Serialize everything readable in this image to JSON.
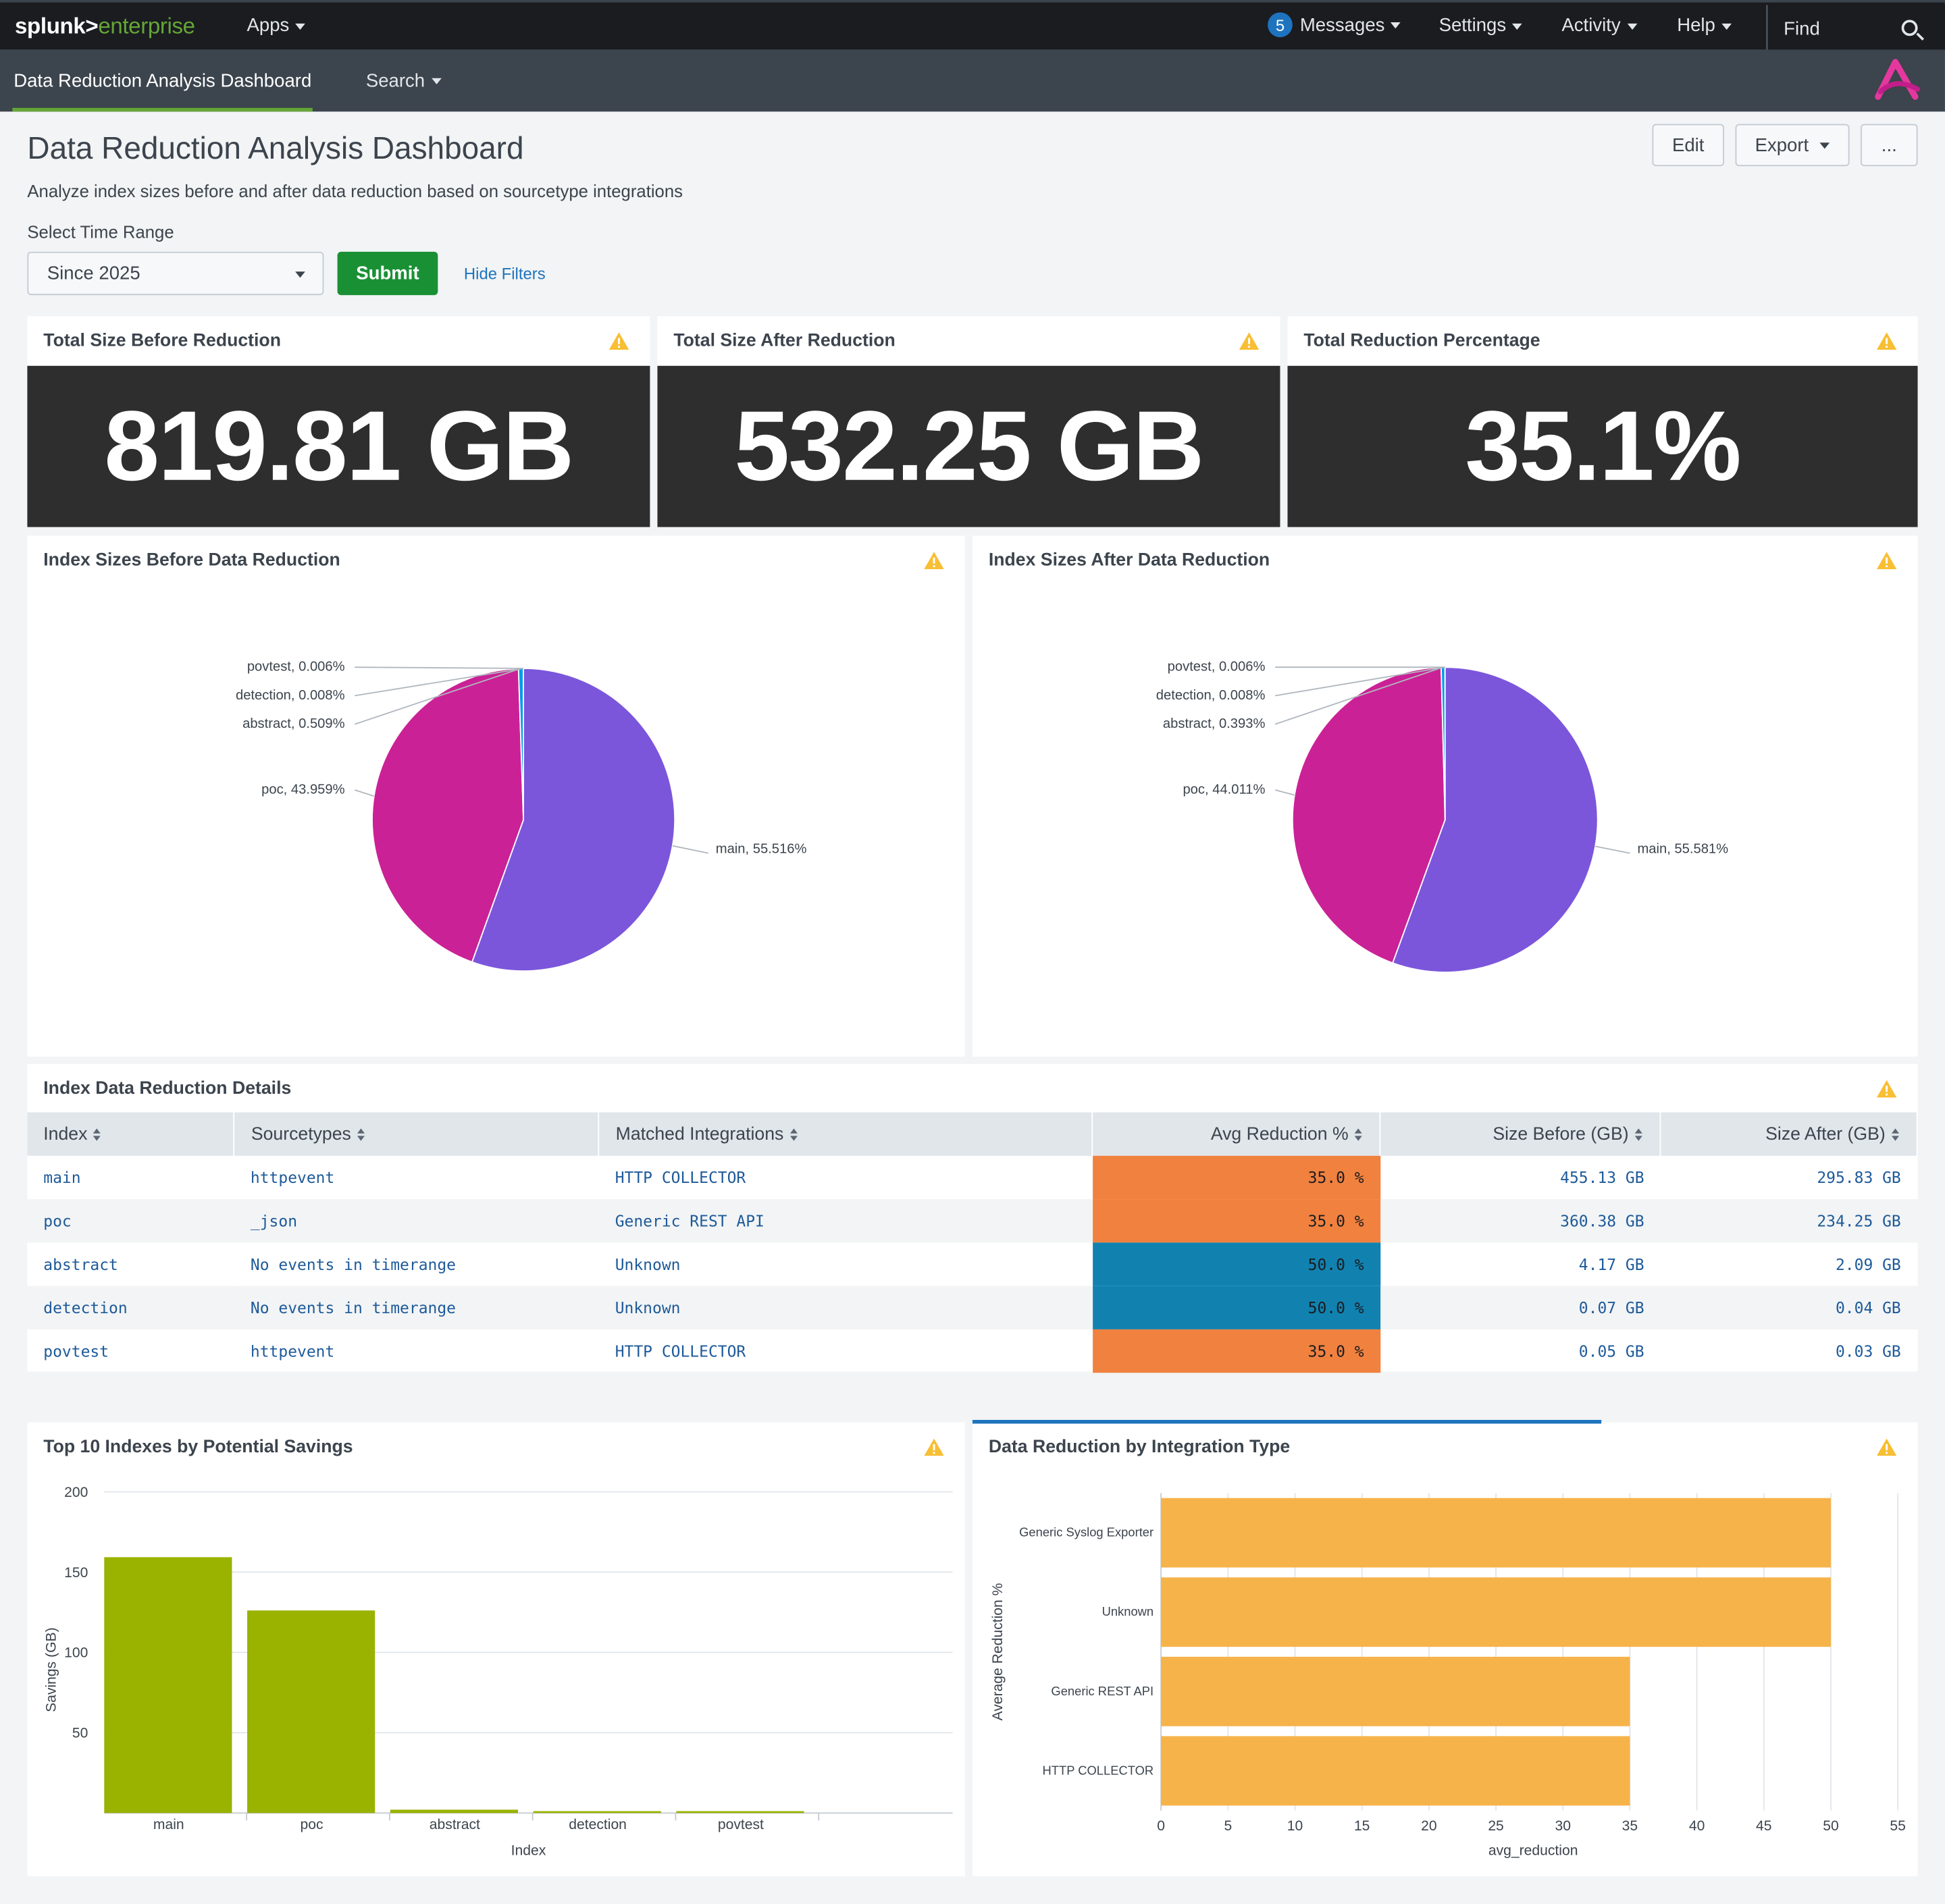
{
  "topbar": {
    "logo_brand": "splunk>",
    "logo_product": "enterprise",
    "apps_label": "Apps",
    "messages_count": "5",
    "messages_label": "Messages",
    "settings_label": "Settings",
    "activity_label": "Activity",
    "help_label": "Help",
    "find_label": "Find"
  },
  "appbar": {
    "active_tab": "Data Reduction Analysis Dashboard",
    "search_tab": "Search"
  },
  "header": {
    "title": "Data Reduction Analysis Dashboard",
    "description": "Analyze index sizes before and after data reduction based on sourcetype integrations",
    "edit_label": "Edit",
    "export_label": "Export",
    "more_label": "..."
  },
  "filters": {
    "time_range_label": "Select Time Range",
    "time_range_value": "Since 2025",
    "submit_label": "Submit",
    "hide_filters_label": "Hide Filters"
  },
  "singles": [
    {
      "title": "Total Size Before Reduction",
      "value": "819.81 GB"
    },
    {
      "title": "Total Size After Reduction",
      "value": "532.25 GB"
    },
    {
      "title": "Total Reduction Percentage",
      "value": "35.1%"
    }
  ],
  "colors": {
    "main_slice": "#7b56db",
    "poc_slice": "#cb2196",
    "abstract_slice": "#009ceb",
    "detection_slice": "#00cdaf",
    "povtest_slice": "#dd9900",
    "heat_orange": "#f1813f",
    "heat_blue": "#1182b0",
    "savings_bar": "#9ab200",
    "integration_bar": "#f6b34a",
    "warning": "#f8be34"
  },
  "pies": [
    {
      "title": "Index Sizes Before Data Reduction",
      "slices": [
        {
          "name": "main",
          "pct": 55.516,
          "label": "main, 55.516%"
        },
        {
          "name": "poc",
          "pct": 43.959,
          "label": "poc, 43.959%"
        },
        {
          "name": "abstract",
          "pct": 0.509,
          "label": "abstract, 0.509%"
        },
        {
          "name": "detection",
          "pct": 0.008,
          "label": "detection, 0.008%"
        },
        {
          "name": "povtest",
          "pct": 0.006,
          "label": "povtest, 0.006%"
        }
      ]
    },
    {
      "title": "Index Sizes After Data Reduction",
      "slices": [
        {
          "name": "main",
          "pct": 55.581,
          "label": "main, 55.581%"
        },
        {
          "name": "poc",
          "pct": 44.011,
          "label": "poc, 44.011%"
        },
        {
          "name": "abstract",
          "pct": 0.393,
          "label": "abstract, 0.393%"
        },
        {
          "name": "detection",
          "pct": 0.008,
          "label": "detection, 0.008%"
        },
        {
          "name": "povtest",
          "pct": 0.006,
          "label": "povtest, 0.006%"
        }
      ]
    }
  ],
  "table": {
    "title": "Index Data Reduction Details",
    "columns": [
      "Index",
      "Sourcetypes",
      "Matched Integrations",
      "Avg Reduction %",
      "Size Before (GB)",
      "Size After (GB)"
    ],
    "rows": [
      {
        "index": "main",
        "sourcetypes": "httpevent",
        "integration": "HTTP COLLECTOR",
        "avg": "35.0 %",
        "heat": "orange",
        "before": "455.13 GB",
        "after": "295.83 GB"
      },
      {
        "index": "poc",
        "sourcetypes": "_json",
        "integration": "Generic REST API",
        "avg": "35.0 %",
        "heat": "orange",
        "before": "360.38 GB",
        "after": "234.25 GB"
      },
      {
        "index": "abstract",
        "sourcetypes": "No events in timerange",
        "integration": "Unknown",
        "avg": "50.0 %",
        "heat": "blue",
        "before": "4.17 GB",
        "after": "2.09 GB"
      },
      {
        "index": "detection",
        "sourcetypes": "No events in timerange",
        "integration": "Unknown",
        "avg": "50.0 %",
        "heat": "blue",
        "before": "0.07 GB",
        "after": "0.04 GB"
      },
      {
        "index": "povtest",
        "sourcetypes": "httpevent",
        "integration": "HTTP COLLECTOR",
        "avg": "35.0 %",
        "heat": "orange",
        "before": "0.05 GB",
        "after": "0.03 GB"
      }
    ]
  },
  "chart_data": [
    {
      "type": "bar",
      "title": "Top 10 Indexes by Potential Savings",
      "categories": [
        "main",
        "poc",
        "abstract",
        "detection",
        "povtest"
      ],
      "values": [
        159.3,
        126.13,
        2.08,
        0.03,
        0.02
      ],
      "xlabel": "Index",
      "ylabel": "Savings (GB)",
      "ylim": [
        0,
        200
      ],
      "yticks": [
        50,
        100,
        150,
        200
      ],
      "grid": true
    },
    {
      "type": "bar",
      "orientation": "horizontal",
      "title": "Data Reduction by Integration Type",
      "categories": [
        "Generic Syslog Exporter",
        "Unknown",
        "Generic REST API",
        "HTTP COLLECTOR"
      ],
      "values": [
        50,
        50,
        35,
        35
      ],
      "xlabel": "avg_reduction",
      "ylabel": "Average Reduction %",
      "xlim": [
        0,
        55
      ],
      "xticks": [
        0,
        5,
        10,
        15,
        20,
        25,
        30,
        35,
        40,
        45,
        50,
        55
      ],
      "grid": true
    }
  ]
}
